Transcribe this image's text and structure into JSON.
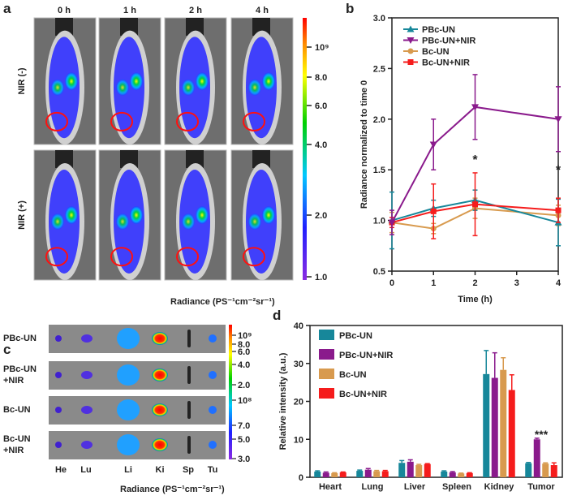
{
  "panel_letters": {
    "a": "a",
    "b": "b",
    "c": "c",
    "d": "d"
  },
  "panel_a": {
    "time_headers": [
      "0 h",
      "1 h",
      "2 h",
      "4 h"
    ],
    "row_labels": [
      "NIR (-)",
      "NIR (+)"
    ],
    "colorbar_ticks": [
      "10⁹",
      "8.0",
      "6.0",
      "4.0",
      "2.0",
      "1.0"
    ],
    "colorbar_label": "Radiance (PS⁻¹cm⁻²sr⁻¹)"
  },
  "panel_c": {
    "row_labels": [
      [
        "PBc-UN",
        ""
      ],
      [
        "PBc-UN",
        "+NIR"
      ],
      [
        "Bc-UN",
        ""
      ],
      [
        "Bc-UN",
        "+NIR"
      ]
    ],
    "organ_labels": [
      "He",
      "Lu",
      "Li",
      "Ki",
      "Sp",
      "Tu"
    ],
    "colorbar_ticks": [
      "10⁹",
      "8.0",
      "6.0",
      "4.0",
      "2.0",
      "10⁸",
      "7.0",
      "5.0",
      "3.0"
    ],
    "colorbar_label": "Radiance (PS⁻¹cm⁻²sr⁻¹)"
  },
  "colors": {
    "PBc-UN": "#17879a",
    "PBc-UN+NIR": "#8a1a8c",
    "Bc-UN": "#d89a4e",
    "Bc-UN+NIR": "#f51c1c"
  },
  "chart_data": [
    {
      "type": "line",
      "title": "",
      "xlabel": "Time (h)",
      "ylabel": "Radiance normalized to time 0",
      "xlim": [
        0,
        4
      ],
      "ylim": [
        0.5,
        3.0
      ],
      "xticks": [
        "0",
        "1",
        "2",
        "3",
        "4"
      ],
      "yticks": [
        "0.5",
        "1.0",
        "1.5",
        "2.0",
        "2.5",
        "3.0"
      ],
      "legend_position": "top-left",
      "x": [
        0,
        1,
        2,
        4
      ],
      "series": [
        {
          "name": "PBc-UN",
          "marker": "triangle-up",
          "values": [
            1.0,
            1.12,
            1.2,
            0.98
          ],
          "errors": [
            0.28,
            0.08,
            0.1,
            0.23
          ]
        },
        {
          "name": "PBc-UN+NIR",
          "marker": "triangle-down",
          "values": [
            0.98,
            1.75,
            2.12,
            2.0
          ],
          "errors": [
            0.12,
            0.25,
            0.32,
            0.32
          ]
        },
        {
          "name": "Bc-UN",
          "marker": "circle",
          "values": [
            0.98,
            0.92,
            1.12,
            1.05
          ],
          "errors": [
            0.1,
            0.05,
            0.1,
            0.1
          ]
        },
        {
          "name": "Bc-UN+NIR",
          "marker": "square",
          "values": [
            0.98,
            1.09,
            1.16,
            1.1
          ],
          "errors": [
            0.05,
            0.27,
            0.31,
            0.12
          ]
        }
      ],
      "annotations": [
        {
          "text": "*",
          "x": 2,
          "y": 1.62
        },
        {
          "text": "*",
          "x": 4,
          "y": 1.52
        }
      ]
    },
    {
      "type": "bar",
      "title": "",
      "xlabel": "",
      "ylabel": "Relative intensity (a.u.)",
      "ylim": [
        0,
        40
      ],
      "yticks": [
        "0",
        "10",
        "20",
        "30",
        "40"
      ],
      "legend_position": "top-left",
      "categories": [
        "Heart",
        "Lung",
        "Liver",
        "Spleen",
        "Kidney",
        "Tumor"
      ],
      "series": [
        {
          "name": "PBc-UN",
          "values": [
            1.5,
            1.7,
            3.8,
            1.5,
            27.2,
            3.7
          ],
          "errors": [
            0.2,
            0.2,
            0.6,
            0.2,
            6.2,
            0.2
          ]
        },
        {
          "name": "PBc-UN+NIR",
          "values": [
            1.2,
            2.0,
            4.1,
            1.3,
            26.2,
            10.0
          ],
          "errors": [
            0.2,
            0.3,
            0.5,
            0.2,
            6.6,
            0.3
          ]
        },
        {
          "name": "Bc-UN",
          "values": [
            1.1,
            1.6,
            3.2,
            1.0,
            28.3,
            3.6
          ],
          "errors": [
            0.1,
            0.2,
            0.2,
            0.1,
            3.2,
            0.2
          ]
        },
        {
          "name": "Bc-UN+NIR",
          "values": [
            1.3,
            1.6,
            3.5,
            1.1,
            23.0,
            3.2
          ],
          "errors": [
            0.1,
            0.2,
            0.1,
            0.1,
            4.0,
            0.6
          ]
        }
      ],
      "annotations": [
        {
          "text": "***",
          "category": "Tumor",
          "y": 11.5
        }
      ]
    }
  ]
}
